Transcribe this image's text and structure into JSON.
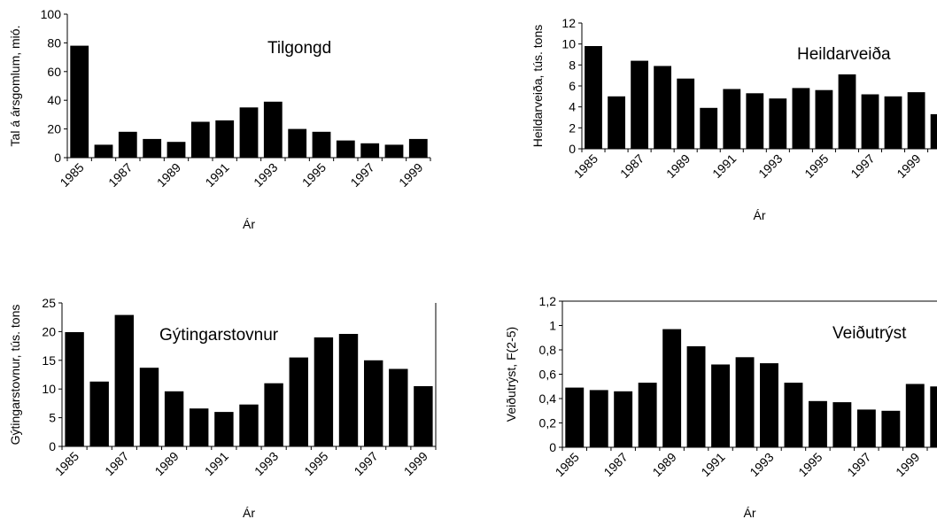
{
  "chart_data": [
    {
      "type": "bar",
      "title": "Tilgongd",
      "xlabel": "Ár",
      "ylabel": "Tal á ársgomlum, mió.",
      "ylim": [
        0,
        100
      ],
      "yticks": [
        "0",
        "20",
        "40",
        "60",
        "80",
        "100"
      ],
      "categories": [
        "1985",
        "1986",
        "1987",
        "1988",
        "1989",
        "1990",
        "1991",
        "1992",
        "1993",
        "1994",
        "1995",
        "1996",
        "1997",
        "1998",
        "1999"
      ],
      "xtick_labels": [
        "1985",
        "1987",
        "1989",
        "1991",
        "1993",
        "1995",
        "1997",
        "1999"
      ],
      "values": [
        78,
        9,
        18,
        13,
        11,
        25,
        26,
        35,
        39,
        20,
        18,
        12,
        10,
        9,
        13
      ],
      "bar_color": "#000000"
    },
    {
      "type": "bar",
      "title": "Heildarveiða",
      "xlabel": "Ár",
      "ylabel": "Heildarveiða, tús. tons",
      "ylim": [
        0,
        12
      ],
      "yticks": [
        "0",
        "2",
        "4",
        "6",
        "8",
        "10",
        "12"
      ],
      "categories": [
        "1985",
        "1986",
        "1987",
        "1988",
        "1989",
        "1990",
        "1991",
        "1992",
        "1993",
        "1994",
        "1995",
        "1996",
        "1997",
        "1998",
        "1999",
        "2000"
      ],
      "xtick_labels": [
        "1985",
        "1987",
        "1989",
        "1991",
        "1993",
        "1995",
        "1997",
        "1999"
      ],
      "values": [
        9.8,
        5.0,
        8.4,
        7.9,
        6.7,
        3.9,
        5.7,
        5.3,
        4.8,
        5.8,
        5.6,
        7.1,
        5.2,
        5.0,
        5.4,
        3.3
      ],
      "bar_color": "#000000"
    },
    {
      "type": "bar",
      "title": "Gýtingarstovnur",
      "xlabel": "Ár",
      "ylabel": "Gýtingarstovnur, tús. tons",
      "ylim": [
        0,
        25
      ],
      "yticks": [
        "0",
        "5",
        "10",
        "15",
        "20",
        "25"
      ],
      "categories": [
        "1985",
        "1986",
        "1987",
        "1988",
        "1989",
        "1990",
        "1991",
        "1992",
        "1993",
        "1994",
        "1995",
        "1996",
        "1997",
        "1998",
        "1999"
      ],
      "xtick_labels": [
        "1985",
        "1987",
        "1989",
        "1991",
        "1993",
        "1995",
        "1997",
        "1999"
      ],
      "values": [
        19.9,
        11.3,
        22.9,
        13.7,
        9.6,
        6.6,
        6.0,
        7.3,
        11.0,
        15.5,
        19.0,
        19.6,
        15.0,
        13.5,
        10.5
      ],
      "bar_color": "#000000"
    },
    {
      "type": "bar",
      "title": "Veiðutrýst",
      "xlabel": "Ár",
      "ylabel": "Veiðutrýst, F(2-5)",
      "ylim": [
        0,
        1.2
      ],
      "yticks": [
        "0",
        "0,2",
        "0,4",
        "0,6",
        "0,8",
        "1",
        "1,2"
      ],
      "categories": [
        "1985",
        "1986",
        "1987",
        "1988",
        "1989",
        "1990",
        "1991",
        "1992",
        "1993",
        "1994",
        "1995",
        "1996",
        "1997",
        "1998",
        "1999",
        "2000"
      ],
      "xtick_labels": [
        "1985",
        "1987",
        "1989",
        "1991",
        "1993",
        "1995",
        "1997",
        "1999"
      ],
      "values": [
        0.49,
        0.47,
        0.46,
        0.53,
        0.97,
        0.83,
        0.68,
        0.74,
        0.69,
        0.53,
        0.38,
        0.37,
        0.31,
        0.3,
        0.52,
        0.5
      ],
      "bar_color": "#000000"
    }
  ]
}
